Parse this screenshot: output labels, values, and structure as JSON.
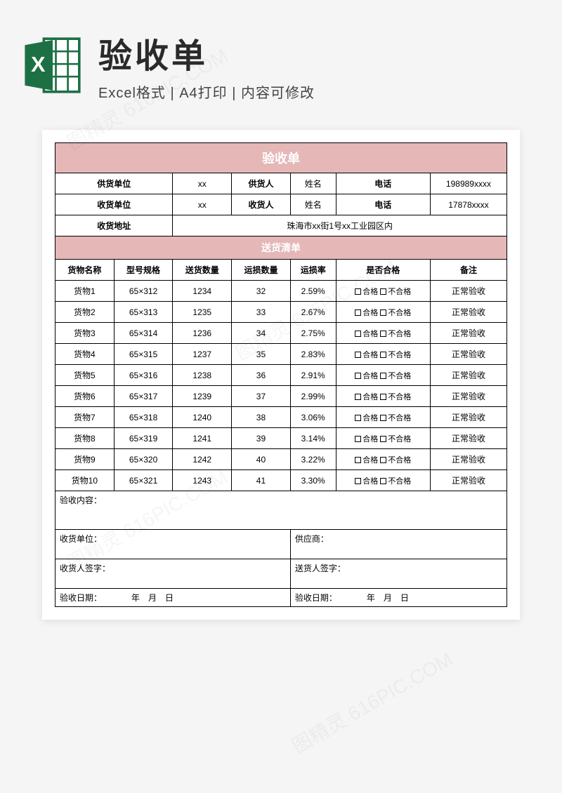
{
  "header": {
    "title": "验收单",
    "subtitle": "Excel格式 | A4打印 | 内容可修改"
  },
  "form": {
    "title": "验收单",
    "info": {
      "supplier_unit_label": "供货单位",
      "supplier_unit": "xx",
      "supplier_person_label": "供货人",
      "supplier_person": "姓名",
      "supplier_phone_label": "电话",
      "supplier_phone": "198989xxxx",
      "receiver_unit_label": "收货单位",
      "receiver_unit": "xx",
      "receiver_person_label": "收货人",
      "receiver_person": "姓名",
      "receiver_phone_label": "电话",
      "receiver_phone": "17878xxxx",
      "address_label": "收货地址",
      "address": "珠海市xx街1号xx工业园区内"
    },
    "list_title": "送货清单",
    "columns": {
      "c1": "货物名称",
      "c2": "型号规格",
      "c3": "送货数量",
      "c4": "运损数量",
      "c5": "运损率",
      "c6": "是否合格",
      "c7": "备注"
    },
    "check_pass": "合格",
    "check_fail": "不合格",
    "rows": [
      {
        "name": "货物1",
        "spec": "65×312",
        "qty": "1234",
        "dmg": "32",
        "rate": "2.59%",
        "remark": "正常验收"
      },
      {
        "name": "货物2",
        "spec": "65×313",
        "qty": "1235",
        "dmg": "33",
        "rate": "2.67%",
        "remark": "正常验收"
      },
      {
        "name": "货物3",
        "spec": "65×314",
        "qty": "1236",
        "dmg": "34",
        "rate": "2.75%",
        "remark": "正常验收"
      },
      {
        "name": "货物4",
        "spec": "65×315",
        "qty": "1237",
        "dmg": "35",
        "rate": "2.83%",
        "remark": "正常验收"
      },
      {
        "name": "货物5",
        "spec": "65×316",
        "qty": "1238",
        "dmg": "36",
        "rate": "2.91%",
        "remark": "正常验收"
      },
      {
        "name": "货物6",
        "spec": "65×317",
        "qty": "1239",
        "dmg": "37",
        "rate": "2.99%",
        "remark": "正常验收"
      },
      {
        "name": "货物7",
        "spec": "65×318",
        "qty": "1240",
        "dmg": "38",
        "rate": "3.06%",
        "remark": "正常验收"
      },
      {
        "name": "货物8",
        "spec": "65×319",
        "qty": "1241",
        "dmg": "39",
        "rate": "3.14%",
        "remark": "正常验收"
      },
      {
        "name": "货物9",
        "spec": "65×320",
        "qty": "1242",
        "dmg": "40",
        "rate": "3.22%",
        "remark": "正常验收"
      },
      {
        "name": "货物10",
        "spec": "65×321",
        "qty": "1243",
        "dmg": "41",
        "rate": "3.30%",
        "remark": "正常验收"
      }
    ],
    "footer": {
      "content_label": "验收内容：",
      "receiver_unit_label": "收货单位：",
      "supplier_label": "供应商：",
      "receiver_sign_label": "收货人签字：",
      "sender_sign_label": "送货人签字：",
      "date_label": "验收日期：",
      "date_fmt": "年　月　日"
    }
  },
  "colors": {
    "banner_bg": "#e5b7b7",
    "excel_green": "#1d7044"
  }
}
